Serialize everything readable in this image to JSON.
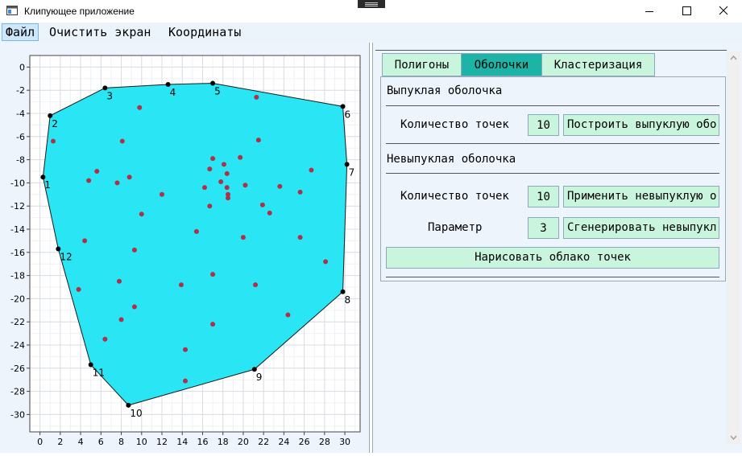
{
  "window": {
    "title": "Клипующее приложение",
    "minimize_icon": "minimize-icon",
    "maximize_icon": "maximize-icon",
    "close_icon": "close-icon"
  },
  "menu": {
    "items": [
      "Файл",
      "Очистить экран",
      "Координаты"
    ]
  },
  "tabs": {
    "items": [
      "Полигоны",
      "Оболочки",
      "Кластеризация"
    ],
    "selected": "Оболочки"
  },
  "convex": {
    "title": "Выпуклая оболочка",
    "count_label": "Количество точек",
    "count_value": "10",
    "build_button": "Построить выпуклую обо"
  },
  "concave": {
    "title": "Невыпуклая оболочка",
    "count_label": "Количество точек",
    "count_value": "10",
    "apply_button": "Применить невыпуклую о",
    "param_label": "Параметр",
    "param_value": "3",
    "generate_button": "Сгенерировать невыпукл"
  },
  "draw_cloud_button": "Нарисовать облако точек",
  "colors": {
    "hull_fill": "#2ae6f4",
    "point": "#b03048",
    "vertex": "#000000",
    "selected_tab": "#1cb4a6",
    "button": "#c8f5dc"
  },
  "chart_data": {
    "type": "scatter",
    "xlim": [
      -1,
      31.5
    ],
    "ylim": [
      -31.5,
      1
    ],
    "xticks": [
      0,
      2,
      4,
      6,
      8,
      10,
      12,
      14,
      16,
      18,
      20,
      22,
      24,
      26,
      28,
      30
    ],
    "yticks": [
      0,
      -2,
      -4,
      -6,
      -8,
      -10,
      -12,
      -14,
      -16,
      -18,
      -20,
      -22,
      -24,
      -26,
      -28,
      -30
    ],
    "grid": true,
    "hull": [
      {
        "label": "1",
        "x": 0.3,
        "y": -9.5
      },
      {
        "label": "2",
        "x": 1,
        "y": -4.2
      },
      {
        "label": "3",
        "x": 6.4,
        "y": -1.8
      },
      {
        "label": "4",
        "x": 12.6,
        "y": -1.5
      },
      {
        "label": "5",
        "x": 17,
        "y": -1.4
      },
      {
        "label": "6",
        "x": 29.8,
        "y": -3.4
      },
      {
        "label": "7",
        "x": 30.2,
        "y": -8.4
      },
      {
        "label": "8",
        "x": 29.8,
        "y": -19.4
      },
      {
        "label": "9",
        "x": 21.1,
        "y": -26.1
      },
      {
        "label": "10",
        "x": 8.7,
        "y": -29.2
      },
      {
        "label": "11",
        "x": 5,
        "y": -25.7
      },
      {
        "label": "12",
        "x": 1.8,
        "y": -15.7
      }
    ],
    "points": [
      {
        "x": 1.3,
        "y": -6.4
      },
      {
        "x": 5.6,
        "y": -9
      },
      {
        "x": 4.8,
        "y": -9.8
      },
      {
        "x": 7.6,
        "y": -10
      },
      {
        "x": 8.1,
        "y": -6.4
      },
      {
        "x": 8.8,
        "y": -9.5
      },
      {
        "x": 9.8,
        "y": -3.5
      },
      {
        "x": 10,
        "y": -12.7
      },
      {
        "x": 12,
        "y": -11
      },
      {
        "x": 4.4,
        "y": -15
      },
      {
        "x": 9.3,
        "y": -15.8
      },
      {
        "x": 7.8,
        "y": -18.5
      },
      {
        "x": 3.8,
        "y": -19.2
      },
      {
        "x": 9.3,
        "y": -20.7
      },
      {
        "x": 8,
        "y": -21.8
      },
      {
        "x": 6.4,
        "y": -23.5
      },
      {
        "x": 14.3,
        "y": -24.4
      },
      {
        "x": 14.3,
        "y": -27.1
      },
      {
        "x": 13.9,
        "y": -18.8
      },
      {
        "x": 15.4,
        "y": -14.2
      },
      {
        "x": 17,
        "y": -17.9
      },
      {
        "x": 17,
        "y": -22.2
      },
      {
        "x": 16.7,
        "y": -12
      },
      {
        "x": 16.2,
        "y": -10.4
      },
      {
        "x": 16.7,
        "y": -8.8
      },
      {
        "x": 17,
        "y": -7.9
      },
      {
        "x": 17.8,
        "y": -9.9
      },
      {
        "x": 18.1,
        "y": -8.4
      },
      {
        "x": 18.4,
        "y": -9.2
      },
      {
        "x": 18.4,
        "y": -10.4
      },
      {
        "x": 18.5,
        "y": -11
      },
      {
        "x": 18.5,
        "y": -11.3
      },
      {
        "x": 19.7,
        "y": -7.8
      },
      {
        "x": 20.2,
        "y": -10.2
      },
      {
        "x": 20,
        "y": -14.7
      },
      {
        "x": 21.2,
        "y": -18.8
      },
      {
        "x": 21.5,
        "y": -6.3
      },
      {
        "x": 21.9,
        "y": -11.9
      },
      {
        "x": 22.6,
        "y": -12.6
      },
      {
        "x": 23.6,
        "y": -10.3
      },
      {
        "x": 25.6,
        "y": -10.8
      },
      {
        "x": 26.7,
        "y": -8.9
      },
      {
        "x": 25.6,
        "y": -14.7
      },
      {
        "x": 24.4,
        "y": -21.4
      },
      {
        "x": 28.1,
        "y": -16.8
      },
      {
        "x": 21.3,
        "y": -2.6
      }
    ]
  }
}
